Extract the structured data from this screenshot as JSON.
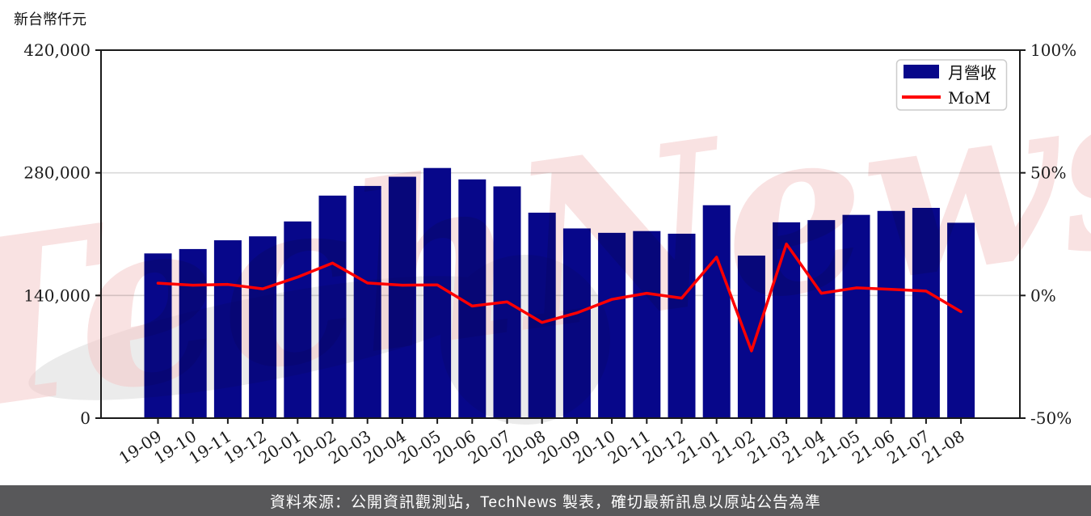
{
  "page": {
    "footer": "資料來源：公開資訊觀測站，TechNews 製表，確切最新訊息以原站公告為準",
    "watermark": "TechNews"
  },
  "legend": {
    "position": "top-right",
    "items": [
      {
        "label": "月營收",
        "swatch": "bar-swatch"
      },
      {
        "label": "MoM",
        "swatch": "line-swatch"
      }
    ]
  },
  "chart_data": {
    "type": "bar",
    "title": "新台幣仟元",
    "categories": [
      "19-09",
      "19-10",
      "19-11",
      "19-12",
      "20-01",
      "20-02",
      "20-03",
      "20-04",
      "20-05",
      "20-06",
      "20-07",
      "20-08",
      "20-09",
      "20-10",
      "20-11",
      "20-12",
      "21-01",
      "21-02",
      "21-03",
      "21-04",
      "21-05",
      "21-06",
      "21-07",
      "21-08"
    ],
    "series": [
      {
        "name": "月營收",
        "chart_type": "bar",
        "axis": "left",
        "values": [
          188000,
          193000,
          203000,
          207500,
          224500,
          254000,
          265000,
          275500,
          285500,
          272500,
          264500,
          234500,
          216500,
          211500,
          213500,
          210500,
          243000,
          185500,
          223500,
          226000,
          232000,
          236500,
          240000,
          223000
        ]
      },
      {
        "name": "MoM",
        "chart_type": "line",
        "axis": "right",
        "values": [
          5.0,
          4.2,
          4.5,
          2.7,
          7.5,
          13.2,
          5.1,
          4.2,
          4.3,
          -4.3,
          -2.6,
          -11.0,
          -7.1,
          -1.6,
          0.9,
          -1.1,
          15.6,
          -22.6,
          21.0,
          0.9,
          3.1,
          2.5,
          1.8,
          -6.6
        ]
      }
    ],
    "left_axis": {
      "range": [
        0,
        420000
      ],
      "tick_values": [
        0,
        140000,
        280000,
        420000
      ],
      "tick_labels": [
        "0",
        "140,000",
        "280,000",
        "420,000"
      ]
    },
    "right_axis": {
      "range": [
        -50,
        100
      ],
      "tick_values": [
        -50,
        0,
        50,
        100
      ],
      "tick_labels": [
        "-50%",
        "0%",
        "50%",
        "100%"
      ]
    },
    "grid": true,
    "legend_position": "top-right"
  },
  "colors": {
    "bar": "#07078a",
    "line": "#ff0000",
    "grid": "#d9d9d9",
    "axis": "#1a1a1a",
    "tick_text": "#1a1a1a",
    "legend_border": "#cccccc",
    "footer_bg": "#58585a",
    "footer_text": "#ffffff",
    "watermark_pink": "#f5caca",
    "watermark_gray": "#ebebeb"
  }
}
